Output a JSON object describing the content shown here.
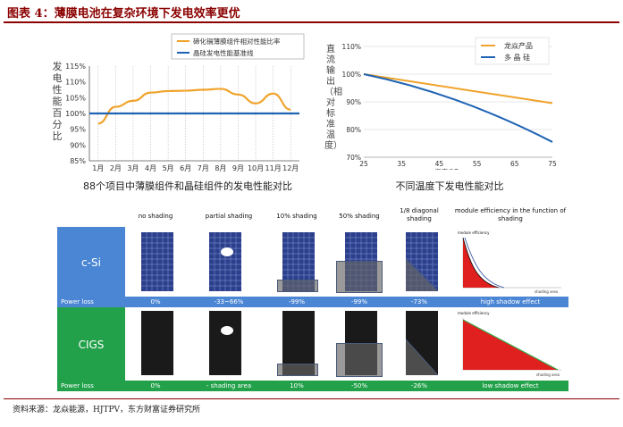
{
  "figure_title": "图表 4：薄膜电池在复杂环境下发电效率更优",
  "source": "资料来源：龙焱能源，HJTPV，东方财富证券研究所",
  "colors": {
    "title": "#8b0000",
    "orange": "#f0a32b",
    "blue": "#1f63b4",
    "csi_band": "#4a86d4",
    "cigs_band": "#22a14a",
    "red_fill": "#e0201e"
  },
  "chart_data": [
    {
      "type": "line",
      "title": "88个项目中薄膜组件和晶硅组件的发电性能对比",
      "ylabel": "发电性能百分比",
      "xlabel": "",
      "categories": [
        "1月",
        "2月",
        "3月",
        "4月",
        "5月",
        "6月",
        "7月",
        "8月",
        "9月",
        "10月",
        "11月",
        "12月"
      ],
      "yticks": [
        "85%",
        "90%",
        "95%",
        "100%",
        "105%",
        "110%",
        "115%"
      ],
      "ylim": [
        85,
        115
      ],
      "grid": "vertical-dotted",
      "legend_position": "top",
      "series": [
        {
          "name": "碲化镉薄膜组件相对性能比率",
          "color": "#f0a32b",
          "values": [
            96.8,
            102.1,
            104.0,
            106.6,
            107.1,
            107.2,
            107.5,
            107.8,
            106.0,
            103.2,
            106.3,
            101.2
          ]
        },
        {
          "name": "晶硅发电性能基准线",
          "color": "#1f63b4",
          "values": [
            100,
            100,
            100,
            100,
            100,
            100,
            100,
            100,
            100,
            100,
            100,
            100
          ]
        }
      ]
    },
    {
      "type": "line",
      "title": "不同温度下发电性能对比",
      "ylabel": "直流输出（相对标准温度）",
      "xlabel": "温度/°C",
      "x": [
        25,
        35,
        45,
        55,
        65,
        75
      ],
      "yticks": [
        "70%",
        "80%",
        "90%",
        "100%",
        "110%"
      ],
      "ylim": [
        70,
        110
      ],
      "xlim": [
        25,
        75
      ],
      "grid": "horizontal",
      "legend_position": "top-right",
      "series": [
        {
          "name": "龙焱产品",
          "color": "#f0a32b",
          "x": [
            25,
            75
          ],
          "values": [
            100,
            89.5
          ]
        },
        {
          "name": "多 晶 硅",
          "color": "#1f63b4",
          "x": [
            25,
            75
          ],
          "values": [
            100,
            75.5
          ]
        }
      ]
    }
  ],
  "table": {
    "columns": [
      "no shading",
      "partial shading",
      "10% shading",
      "50% shading",
      "1/8 diagonal shading",
      "module efficiency in the function of shading"
    ],
    "rows": [
      {
        "label": "c-Si",
        "loss_label": "Power loss",
        "losses": [
          "0%",
          "-33~66%",
          "-99%",
          "-99%",
          "-73%"
        ],
        "effect": "high shadow effect",
        "mini_title": "module efficiency",
        "mini_axis": "shading area"
      },
      {
        "label": "CIGS",
        "loss_label": "Power loss",
        "losses": [
          "0%",
          "- shading area",
          "10%",
          "-50%",
          "-26%"
        ],
        "effect": "low shadow effect",
        "mini_title": "module efficiency",
        "mini_axis": "shading area"
      }
    ]
  }
}
